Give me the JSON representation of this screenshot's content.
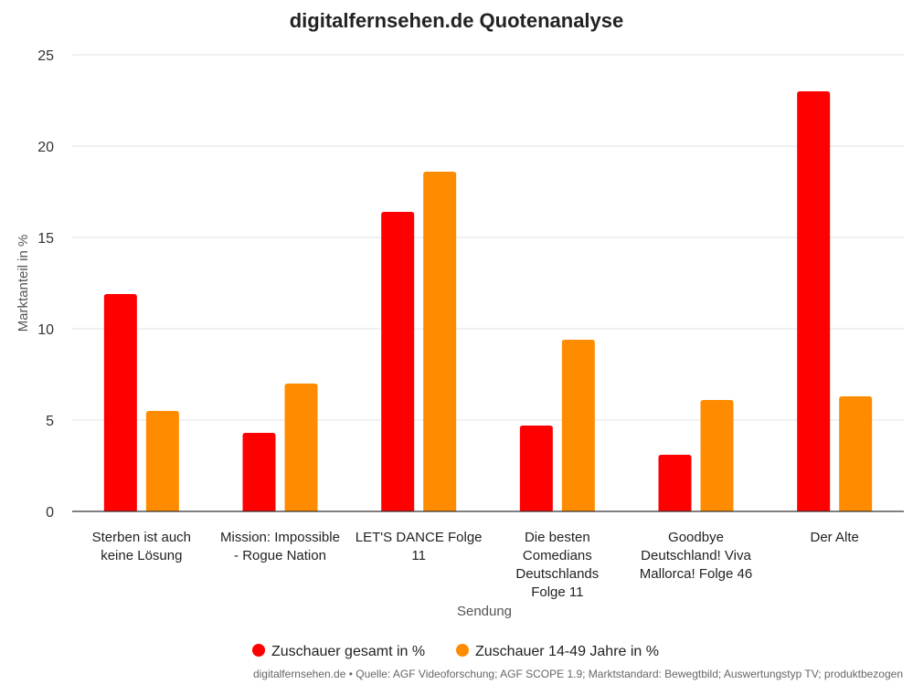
{
  "chart_data": {
    "type": "bar",
    "title": "digitalfernsehen.de Quotenanalyse",
    "xlabel": "Sendung",
    "ylabel": "Marktanteil in %",
    "ylim": [
      0,
      25
    ],
    "yticks": [
      "0",
      "5",
      "10",
      "15",
      "20",
      "25"
    ],
    "grid": true,
    "legend_position": "bottom",
    "categories": [
      [
        "Sterben ist auch",
        "keine Lösung"
      ],
      [
        "Mission: Impossible",
        "- Rogue Nation"
      ],
      [
        "LET'S DANCE Folge",
        "11"
      ],
      [
        "Die besten",
        "Comedians",
        "Deutschlands",
        "Folge 11"
      ],
      [
        "Goodbye",
        "Deutschland! Viva",
        "Mallorca! Folge 46"
      ],
      [
        "Der Alte"
      ]
    ],
    "series": [
      {
        "name": "Zuschauer gesamt in %",
        "color": "#ff0000",
        "values": [
          11.9,
          4.3,
          16.4,
          4.7,
          3.1,
          23.0
        ]
      },
      {
        "name": "Zuschauer 14-49 Jahre in %",
        "color": "#ff8c00",
        "values": [
          5.5,
          7.0,
          18.6,
          9.4,
          6.1,
          6.3
        ]
      }
    ],
    "source": "digitalfernsehen.de • Quelle: AGF Videoforschung; AGF SCOPE 1.9; Marktstandard: Bewegtbild; Auswertungstyp TV; produktbezogen"
  }
}
